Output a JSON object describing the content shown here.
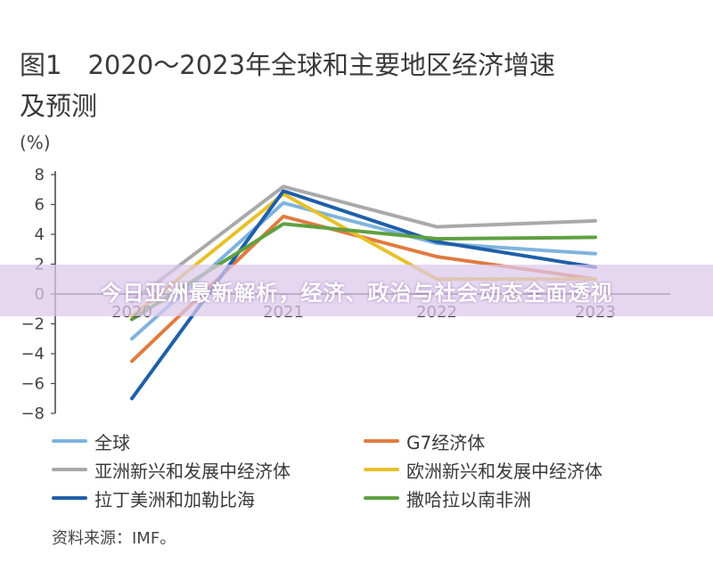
{
  "title": {
    "line1": "图1　2020～2023年全球和主要地区经济增速",
    "line2": "及预测"
  },
  "unit": "(%)",
  "source": "资料来源：IMF。",
  "banner": "今日亚洲最新解析，经济、政治与社会动态全面透视",
  "chart_data": {
    "type": "line",
    "x": [
      "2020",
      "2021",
      "2022",
      "2023"
    ],
    "ylim": [
      -8,
      8
    ],
    "yticks": [
      "8",
      "6",
      "4",
      "2",
      "0",
      "−2",
      "−4",
      "−6",
      "−8"
    ],
    "grid": false,
    "legend_position": "bottom",
    "series": [
      {
        "name": "全球",
        "color": "#7fb3dd",
        "values": [
          -3.0,
          6.1,
          3.4,
          2.7
        ]
      },
      {
        "name": "G7经济体",
        "color": "#e07b40",
        "values": [
          -4.5,
          5.2,
          2.5,
          1.0
        ]
      },
      {
        "name": "亚洲新兴和发展中经济体",
        "color": "#a9a9a9",
        "values": [
          -0.5,
          7.2,
          4.5,
          4.9
        ]
      },
      {
        "name": "欧洲新兴和发展中经济体",
        "color": "#e8c02a",
        "values": [
          -1.5,
          6.7,
          1.0,
          1.0
        ]
      },
      {
        "name": "拉丁美洲和加勒比海",
        "color": "#1f5fa8",
        "values": [
          -7.0,
          6.9,
          3.5,
          1.8
        ]
      },
      {
        "name": "撒哈拉以南非洲",
        "color": "#5fa040",
        "values": [
          -1.7,
          4.7,
          3.7,
          3.8
        ]
      }
    ]
  }
}
